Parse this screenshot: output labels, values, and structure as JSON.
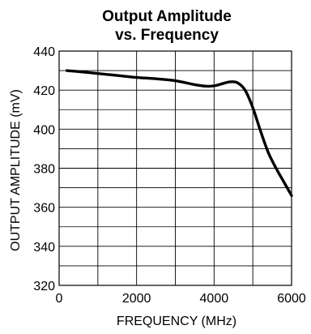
{
  "chart_data": {
    "type": "line",
    "title_lines": [
      "Output Amplitude",
      "vs. Frequency"
    ],
    "xlabel": "FREQUENCY (MHz)",
    "ylabel": "OUTPUT AMPLITUDE (mV)",
    "xlim": [
      0,
      6000
    ],
    "ylim": [
      320,
      440
    ],
    "x_ticks": [
      0,
      2000,
      4000,
      6000
    ],
    "y_ticks": [
      320,
      340,
      360,
      380,
      400,
      420,
      440
    ],
    "x_minor_step": 1000,
    "y_minor_step": 10,
    "grid": true,
    "line_color": "#000000",
    "series": [
      {
        "x": [
          200,
          500,
          1000,
          1500,
          2000,
          2500,
          3000,
          3500,
          3800,
          4000,
          4200,
          4400,
          4600,
          4800,
          5000,
          5200,
          5400,
          5600,
          5800,
          6000
        ],
        "y": [
          430,
          429.5,
          428.5,
          427.5,
          426.5,
          425.8,
          424.8,
          422.8,
          422,
          422.2,
          423.2,
          424.2,
          423.8,
          420,
          411,
          399,
          388,
          380,
          373,
          366
        ]
      }
    ]
  }
}
